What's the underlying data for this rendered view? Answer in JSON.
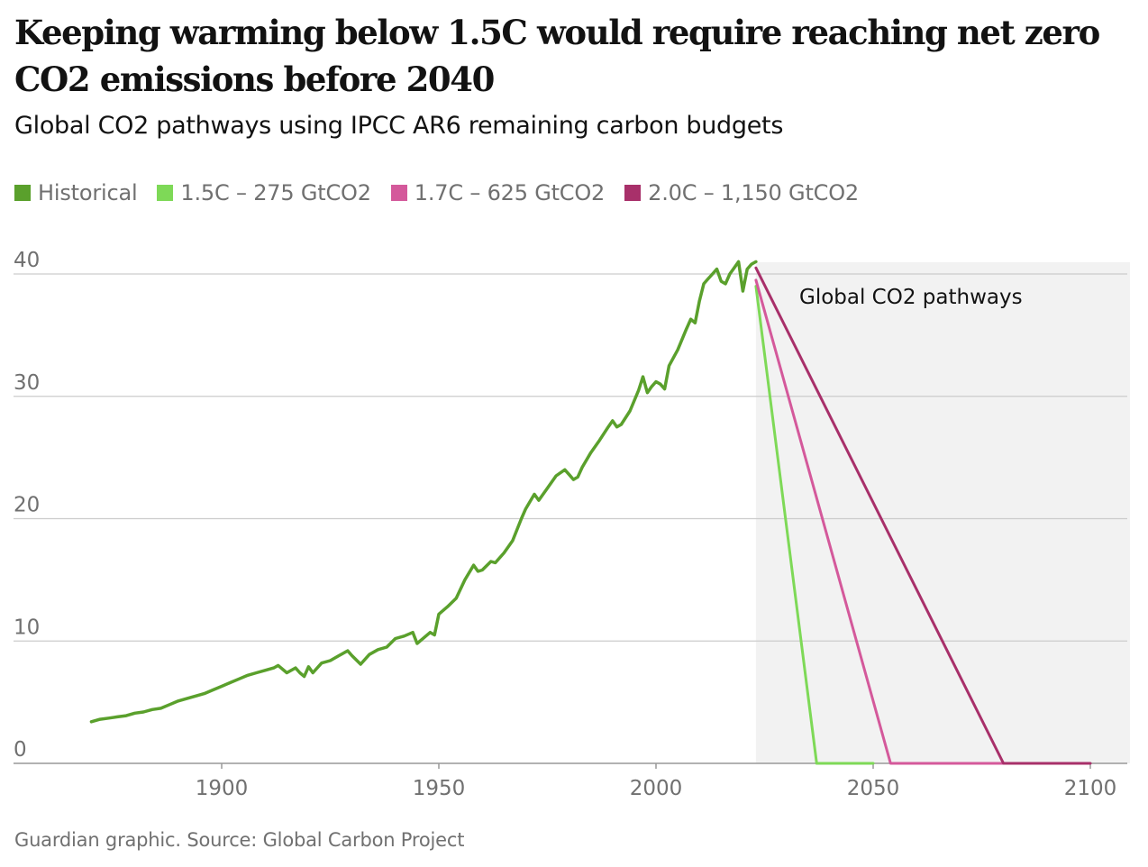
{
  "headline": "Keeping warming below 1.5C would require reaching net zero CO2 emissions before 2040",
  "standfirst": "Global CO2 pathways using IPCC AR6 remaining carbon budgets",
  "source": "Guardian graphic. Source: Global Carbon Project",
  "colors": {
    "historical": "#5aa02c",
    "p15": "#7ed957",
    "p17": "#d4599b",
    "p20": "#a8306a",
    "shade": "#f2f2f2",
    "grid": "#cccccc",
    "axis_text": "#707070"
  },
  "chart_data": {
    "type": "line",
    "title": "Keeping warming below 1.5C would require reaching net zero CO2 emissions before 2040",
    "subtitle": "Global CO2 pathways using IPCC AR6 remaining carbon budgets",
    "xlabel": "",
    "ylabel": "",
    "xlim": [
      1865,
      2108
    ],
    "ylim": [
      0,
      40
    ],
    "x_ticks": [
      1900,
      1950,
      2000,
      2050,
      2100
    ],
    "y_ticks": [
      0,
      10,
      20,
      30,
      40
    ],
    "grid": true,
    "legend_position": "top-left",
    "shaded_region": {
      "x_start": 2023,
      "x_end": 2108,
      "label": "Global CO2 pathways"
    },
    "series": [
      {
        "key": "historical",
        "name": "Historical",
        "x": [
          1870,
          1872,
          1874,
          1876,
          1878,
          1880,
          1882,
          1884,
          1886,
          1888,
          1890,
          1892,
          1894,
          1896,
          1898,
          1900,
          1902,
          1904,
          1906,
          1908,
          1910,
          1912,
          1913,
          1915,
          1917,
          1918,
          1919,
          1920,
          1921,
          1923,
          1925,
          1927,
          1929,
          1930,
          1932,
          1934,
          1936,
          1938,
          1940,
          1942,
          1944,
          1945,
          1946,
          1948,
          1949,
          1950,
          1952,
          1954,
          1956,
          1958,
          1959,
          1960,
          1962,
          1963,
          1965,
          1967,
          1969,
          1970,
          1972,
          1973,
          1975,
          1977,
          1979,
          1980,
          1981,
          1982,
          1983,
          1985,
          1987,
          1989,
          1990,
          1991,
          1992,
          1994,
          1996,
          1997,
          1998,
          1999,
          2000,
          2001,
          2002,
          2003,
          2005,
          2007,
          2008,
          2009,
          2010,
          2011,
          2012,
          2013,
          2014,
          2015,
          2016,
          2017,
          2018,
          2019,
          2020,
          2021,
          2022,
          2023
        ],
        "values": [
          3.4,
          3.6,
          3.7,
          3.8,
          3.9,
          4.1,
          4.2,
          4.4,
          4.5,
          4.8,
          5.1,
          5.3,
          5.5,
          5.7,
          6.0,
          6.3,
          6.6,
          6.9,
          7.2,
          7.4,
          7.6,
          7.8,
          8.0,
          7.4,
          7.8,
          7.4,
          7.1,
          7.9,
          7.4,
          8.2,
          8.4,
          8.8,
          9.2,
          8.8,
          8.1,
          8.9,
          9.3,
          9.5,
          10.2,
          10.4,
          10.7,
          9.8,
          10.1,
          10.7,
          10.5,
          12.2,
          12.8,
          13.5,
          15.0,
          16.2,
          15.7,
          15.8,
          16.5,
          16.4,
          17.2,
          18.2,
          20.0,
          20.8,
          22.0,
          21.5,
          22.5,
          23.5,
          24.0,
          23.6,
          23.2,
          23.4,
          24.2,
          25.4,
          26.4,
          27.5,
          28.0,
          27.5,
          27.7,
          28.8,
          30.5,
          31.6,
          30.3,
          30.8,
          31.2,
          31.0,
          30.6,
          32.5,
          33.8,
          35.5,
          36.3,
          36.0,
          37.8,
          39.2,
          39.6,
          40.0,
          40.4,
          39.4,
          39.2,
          40.0,
          40.5,
          41.0,
          38.6,
          40.4,
          40.8,
          41.0
        ]
      },
      {
        "key": "p15",
        "name": "1.5C – 275 GtCO2",
        "x": [
          2023,
          2037,
          2050
        ],
        "values": [
          39.0,
          0,
          0
        ]
      },
      {
        "key": "p17",
        "name": "1.7C – 625 GtCO2",
        "x": [
          2023,
          2054,
          2080
        ],
        "values": [
          39.5,
          0,
          0
        ]
      },
      {
        "key": "p20",
        "name": "2.0C – 1,150 GtCO2",
        "x": [
          2023,
          2080,
          2100
        ],
        "values": [
          40.5,
          0,
          0
        ]
      }
    ]
  }
}
